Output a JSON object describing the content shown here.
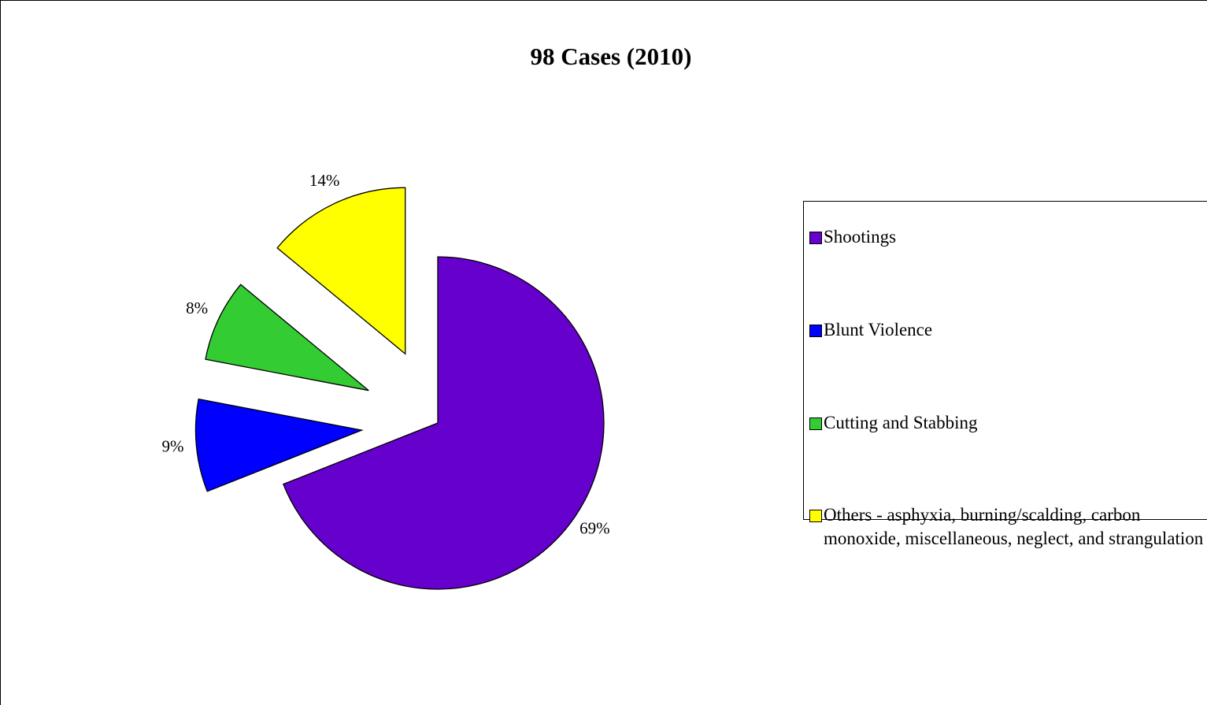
{
  "chart_data": {
    "type": "pie",
    "title": "98 Cases (2010)",
    "categories": [
      "Shootings",
      "Blunt Violence",
      "Cutting and Stabbing",
      "Others - asphyxia, burning/scalding, carbon monoxide, miscellaneous, neglect, and strangulation"
    ],
    "values": [
      69,
      9,
      8,
      14
    ],
    "value_labels": [
      "69%",
      "9%",
      "8%",
      "14%"
    ],
    "colors": [
      "#6600cc",
      "#0000ff",
      "#33cc33",
      "#ffff00"
    ],
    "exploded": [
      false,
      true,
      true,
      true
    ],
    "legend": "right"
  }
}
